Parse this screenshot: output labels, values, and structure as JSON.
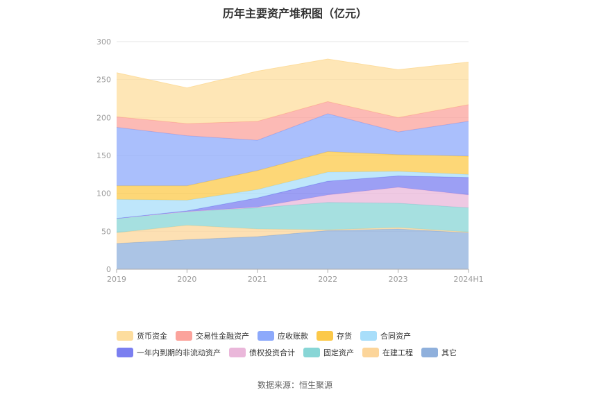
{
  "title": "历年主要资产堆积图（亿元）",
  "source": "数据来源：恒生聚源",
  "chart_data": {
    "type": "area",
    "stacked": true,
    "x": [
      "2019",
      "2020",
      "2021",
      "2022",
      "2023",
      "2024H1"
    ],
    "ylim": [
      0,
      300
    ],
    "yticks": [
      0,
      50,
      100,
      150,
      200,
      250,
      300
    ],
    "grid": true,
    "legend_position": "bottom",
    "series": [
      {
        "name": "其它",
        "color": "#8fb0dc",
        "values": [
          34,
          39,
          43,
          51,
          53,
          48
        ]
      },
      {
        "name": "在建工程",
        "color": "#fcd59a",
        "values": [
          14,
          19,
          10,
          1,
          2,
          1
        ]
      },
      {
        "name": "固定资产",
        "color": "#88d6d6",
        "values": [
          19,
          18,
          28,
          36,
          32,
          32
        ]
      },
      {
        "name": "债权投资合计",
        "color": "#eab7da",
        "values": [
          0,
          0,
          1,
          10,
          21,
          17
        ]
      },
      {
        "name": "一年内到期的非流动资产",
        "color": "#7b7ff0",
        "values": [
          0,
          1,
          12,
          18,
          15,
          23
        ]
      },
      {
        "name": "合同资产",
        "color": "#a8defa",
        "values": [
          25,
          14,
          11,
          12,
          6,
          4
        ]
      },
      {
        "name": "存货",
        "color": "#fcc94a",
        "values": [
          18,
          19,
          25,
          27,
          22,
          24
        ]
      },
      {
        "name": "应收账款",
        "color": "#8da9fb",
        "values": [
          77,
          66,
          40,
          50,
          30,
          46
        ]
      },
      {
        "name": "交易性金融资产",
        "color": "#fba39c",
        "values": [
          14,
          16,
          25,
          16,
          19,
          22
        ]
      },
      {
        "name": "货币资金",
        "color": "#fddd9e",
        "values": [
          58,
          47,
          66,
          56,
          63,
          56
        ]
      }
    ],
    "legend_order": [
      "货币资金",
      "交易性金融资产",
      "应收账款",
      "存货",
      "合同资产",
      "一年内到期的非流动资产",
      "债权投资合计",
      "固定资产",
      "在建工程",
      "其它"
    ]
  }
}
